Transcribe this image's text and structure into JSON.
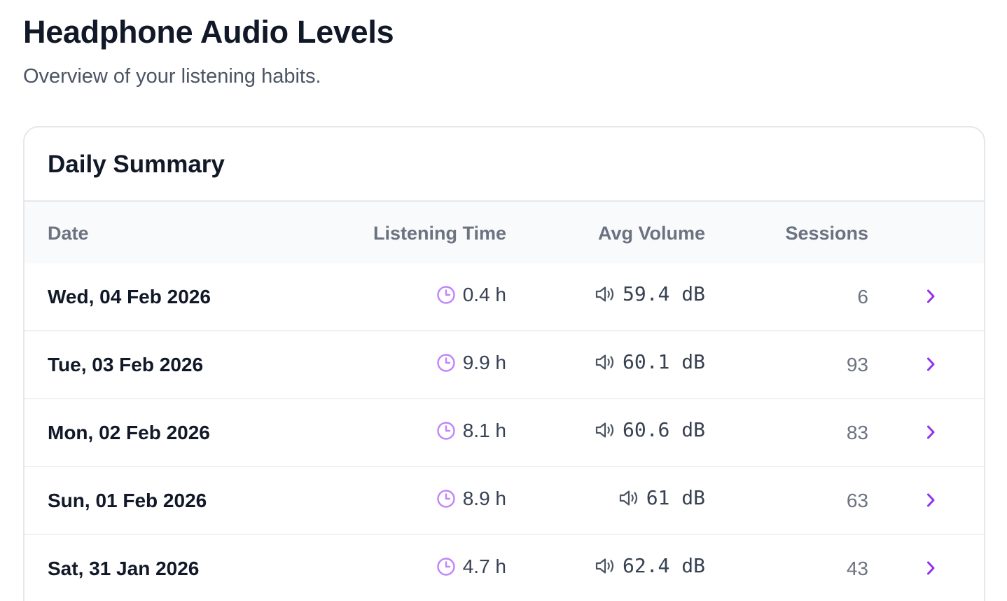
{
  "header": {
    "title": "Headphone Audio Levels",
    "subtitle": "Overview of your listening habits."
  },
  "summary": {
    "title": "Daily Summary",
    "columns": {
      "date": "Date",
      "listening_time": "Listening Time",
      "avg_volume": "Avg Volume",
      "sessions": "Sessions"
    },
    "rows": [
      {
        "date": "Wed, 04 Feb 2026",
        "listening_time": "0.4 h",
        "avg_volume": "59.4 dB",
        "sessions": "6"
      },
      {
        "date": "Tue, 03 Feb 2026",
        "listening_time": "9.9 h",
        "avg_volume": "60.1 dB",
        "sessions": "93"
      },
      {
        "date": "Mon, 02 Feb 2026",
        "listening_time": "8.1 h",
        "avg_volume": "60.6 dB",
        "sessions": "83"
      },
      {
        "date": "Sun, 01 Feb 2026",
        "listening_time": "8.9 h",
        "avg_volume": "61 dB",
        "sessions": "63"
      },
      {
        "date": "Sat, 31 Jan 2026",
        "listening_time": "4.7 h",
        "avg_volume": "62.4 dB",
        "sessions": "43"
      }
    ]
  },
  "icons": {
    "time": "clock-icon",
    "volume": "speaker-icon",
    "row_action": "chevron-right-icon"
  },
  "colors": {
    "accent": "#9333ea",
    "clock": "#c084fc"
  }
}
